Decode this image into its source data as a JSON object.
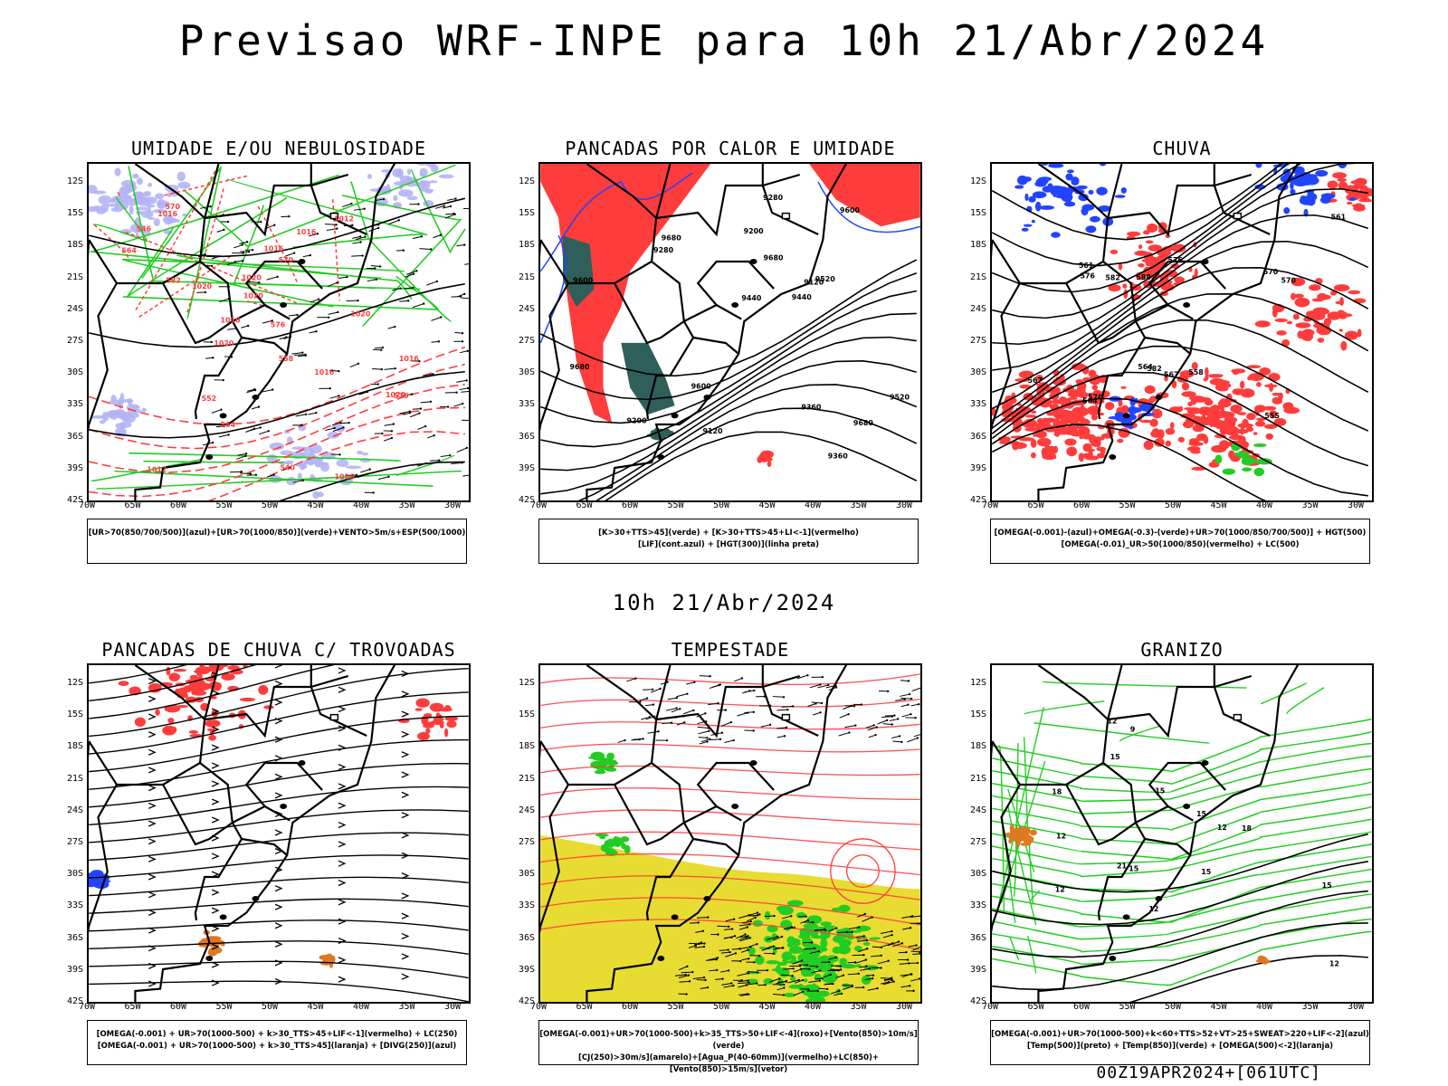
{
  "title": "Previsao WRF-INPE  para 10h 21/Abr/2024",
  "subtitle": "10h 21/Abr/2024",
  "footer": "00Z19APR2024+[061UTC]",
  "lat_labels": [
    "12S",
    "15S",
    "18S",
    "21S",
    "24S",
    "27S",
    "30S",
    "33S",
    "36S",
    "39S",
    "42S"
  ],
  "lon_labels": [
    "70W",
    "65W",
    "60W",
    "55W",
    "50W",
    "45W",
    "40W",
    "35W",
    "30W"
  ],
  "colors": {
    "red": "#ff3c3c",
    "green": "#22cc22",
    "blue": "#2244ff",
    "lavender": "#b4b4f5",
    "yellow": "#e8dc32",
    "teal": "#2f5f5a",
    "orange": "#e07820",
    "black": "#000000"
  },
  "panels": [
    {
      "title": "UMIDADE E/OU NEBULOSIDADE",
      "legend": [
        "[UR>70(850/700/500)](azul)+[UR>70(1000/850)](verde)+VENTO>5m/s+ESP(500/1000)"
      ],
      "labels": [
        "1016",
        "1016",
        "1020",
        "1016",
        "1012",
        "1016",
        "1020",
        "1020",
        "1020",
        "1020",
        "1012",
        "1016",
        "1020",
        "1016",
        "1016",
        "576",
        "570",
        "576",
        "564",
        "570",
        "552",
        "546",
        "540",
        "582",
        "564",
        "558"
      ]
    },
    {
      "title": "PANCADAS POR CALOR E UMIDADE",
      "legend": [
        "[K>30+TTS>45](verde) + [K>30+TTS>45+LI<-1](vermelho)",
        "[LIF](cont.azul) + [HGT(300)](linha preta)"
      ],
      "labels": [
        "9680",
        "9680",
        "9680",
        "9680",
        "9600",
        "9600",
        "9520",
        "9600",
        "9520",
        "9440",
        "9440",
        "9360",
        "9360",
        "9280",
        "9280",
        "9200",
        "9200",
        "9120",
        "9120"
      ]
    },
    {
      "title": "CHUVA",
      "legend": [
        "[OMEGA(-0.001)-(azul)+OMEGA(-0.3)-(verde)+UR>70(1000/850/700/500)] + HGT(500)",
        "[OMEGA(-0.01)_UR>50(1000/850)(vermelho) + LC(500)"
      ],
      "labels": [
        "588",
        "582",
        "582",
        "576",
        "570",
        "576",
        "570",
        "567",
        "564",
        "561",
        "558",
        "570",
        "567",
        "564",
        "561",
        "555"
      ]
    },
    {
      "title": "PANCADAS DE CHUVA C/ TROVOADAS",
      "legend": [
        "[OMEGA(-0.001) + UR>70(1000-500) + k>30_TTS>45+LIF<-1](vermelho) + LC(250)",
        "[OMEGA(-0.001) + UR>70(1000-500) + k>30_TTS>45](laranja) + [DIVG(250)](azul)"
      ],
      "labels": []
    },
    {
      "title": "TEMPESTADE",
      "legend": [
        "[OMEGA(-0.001)+UR>70(1000-500)+k>35_TTS>50+LIF<-4](roxo)+[Vento(850)>10m/s](verde)",
        "[CJ(250)>30m/s](amarelo)+[Agua_P(40-60mm)](vermelho)+LC(850)+[Vento(850)>15m/s](vetor)"
      ],
      "labels": []
    },
    {
      "title": "GRANIZO",
      "legend": [
        "[OMEGA(-0.001)+UR>70(1000-500)+k<60+TTS>52+VT>25+SWEAT>220+LIF<-2](azul)",
        "[Temp(500)](preto) + [Temp(850)](verde) + [OMEGA(500)<-2](laranja)"
      ],
      "labels": [
        "15",
        "12",
        "15",
        "12",
        "12",
        "12",
        "9",
        "12",
        "15",
        "15",
        "15",
        "12",
        "18",
        "15",
        "18",
        "21"
      ]
    }
  ]
}
